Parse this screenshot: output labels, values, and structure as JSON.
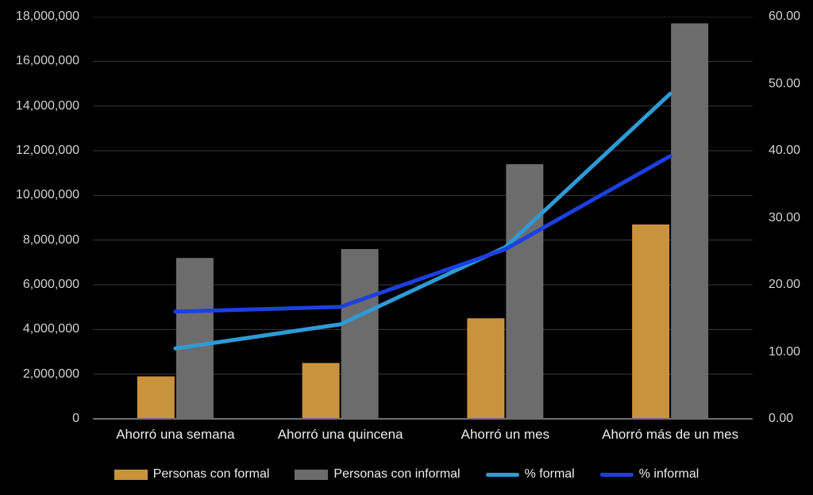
{
  "chart_data": {
    "type": "combo-bar-line",
    "background_color": "#000000",
    "grid": true,
    "gridline_color": "#3a3a3a",
    "axis_line_color": "#6e6e6e",
    "tick_text_color": "#d2d2d2",
    "label_text_color": "#ececec",
    "categories": [
      "Ahorró una semana",
      "Ahorró una quincena",
      "Ahorró un mes",
      "Ahorró más de un mes"
    ],
    "series": [
      {
        "name": "Personas con formal",
        "type": "bar",
        "axis": "left",
        "color": "#c9923c",
        "values": [
          1900000,
          2500000,
          4500000,
          8700000
        ]
      },
      {
        "name": "Personas con informal",
        "type": "bar",
        "axis": "left",
        "color": "#6c6c6c",
        "values": [
          7200000,
          7600000,
          11400000,
          17700000
        ]
      },
      {
        "name": "% formal",
        "type": "line",
        "axis": "right",
        "color": "#2e9bd5",
        "values": [
          10.5,
          14.1,
          25.6,
          48.5
        ]
      },
      {
        "name": "% informal",
        "type": "line",
        "axis": "right",
        "color": "#1c40e0",
        "values": [
          16.0,
          16.7,
          25.3,
          39.2
        ]
      }
    ],
    "left_axis": {
      "min": 0,
      "max": 18000000,
      "step": 2000000,
      "tick_labels": [
        "0",
        "2,000,000",
        "4,000,000",
        "6,000,000",
        "8,000,000",
        "10,000,000",
        "12,000,000",
        "14,000,000",
        "16,000,000",
        "18,000,000"
      ]
    },
    "right_axis": {
      "min": 0,
      "max": 60,
      "step": 10,
      "tick_labels": [
        "0.00",
        "10.00",
        "20.00",
        "30.00",
        "40.00",
        "50.00",
        "60.00"
      ]
    },
    "legend_position": "bottom"
  }
}
